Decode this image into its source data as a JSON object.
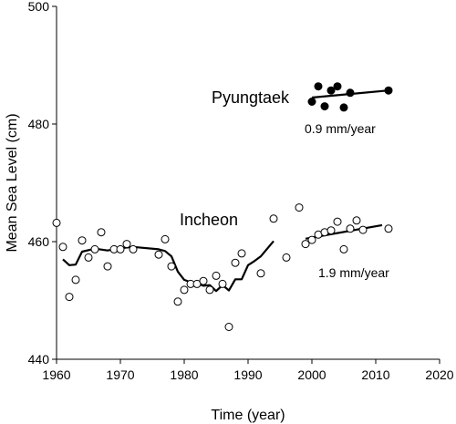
{
  "chart_data": {
    "type": "scatter",
    "xlabel": "Time (year)",
    "ylabel": "Mean Sea Level (cm)",
    "xlim": [
      1960,
      2020
    ],
    "ylim": [
      440,
      500
    ],
    "xticks": [
      1960,
      1970,
      1980,
      1990,
      2000,
      2010,
      2020
    ],
    "yticks": [
      440,
      460,
      480,
      500
    ],
    "grid": false,
    "series": [
      {
        "name": "Incheon",
        "marker": "open-circle",
        "points": [
          [
            1960,
            463.2
          ],
          [
            1961,
            459.1
          ],
          [
            1962,
            450.6
          ],
          [
            1963,
            453.5
          ],
          [
            1964,
            460.2
          ],
          [
            1965,
            457.3
          ],
          [
            1966,
            458.7
          ],
          [
            1967,
            461.6
          ],
          [
            1968,
            455.8
          ],
          [
            1969,
            458.7
          ],
          [
            1970,
            458.7
          ],
          [
            1971,
            459.6
          ],
          [
            1972,
            458.7
          ],
          [
            1976,
            457.8
          ],
          [
            1977,
            460.4
          ],
          [
            1978,
            455.8
          ],
          [
            1979,
            449.8
          ],
          [
            1980,
            451.8
          ],
          [
            1981,
            452.8
          ],
          [
            1982,
            452.8
          ],
          [
            1983,
            453.3
          ],
          [
            1984,
            451.8
          ],
          [
            1985,
            454.2
          ],
          [
            1986,
            452.8
          ],
          [
            1987,
            445.5
          ],
          [
            1988,
            456.4
          ],
          [
            1989,
            458.0
          ],
          [
            1992,
            454.6
          ],
          [
            1994,
            463.9
          ],
          [
            1996,
            457.3
          ],
          [
            1998,
            465.8
          ],
          [
            1999,
            459.6
          ],
          [
            2000,
            460.3
          ],
          [
            2001,
            461.2
          ],
          [
            2002,
            461.6
          ],
          [
            2003,
            461.9
          ],
          [
            2004,
            463.4
          ],
          [
            2005,
            458.7
          ],
          [
            2006,
            462.2
          ],
          [
            2007,
            463.6
          ],
          [
            2008,
            462.0
          ],
          [
            2012,
            462.2
          ]
        ],
        "trend_line": [
          [
            1961,
            457.0
          ],
          [
            1962,
            456.0
          ],
          [
            1963,
            456.1
          ],
          [
            1964,
            458.3
          ],
          [
            1966,
            458.8
          ],
          [
            1968,
            458.5
          ],
          [
            1970,
            458.9
          ],
          [
            1972,
            459.1
          ],
          [
            1976,
            458.7
          ],
          [
            1977,
            458.4
          ],
          [
            1978,
            457.5
          ],
          [
            1979,
            454.9
          ],
          [
            1980,
            453.5
          ],
          [
            1981,
            453.1
          ],
          [
            1982,
            452.9
          ],
          [
            1983,
            452.5
          ],
          [
            1984,
            452.6
          ],
          [
            1985,
            451.6
          ],
          [
            1986,
            452.6
          ],
          [
            1987,
            451.7
          ],
          [
            1988,
            453.6
          ],
          [
            1989,
            453.6
          ],
          [
            1990,
            456.0
          ],
          [
            1991,
            456.7
          ],
          [
            1992,
            457.5
          ],
          [
            1994,
            460.1
          ]
        ],
        "fit_line": [
          [
            1999,
            460.5
          ],
          [
            2011,
            462.8
          ]
        ],
        "fit_label": "1.9 mm/year"
      },
      {
        "name": "Pyungtaek",
        "marker": "filled-circle",
        "points": [
          [
            2000,
            483.8
          ],
          [
            2001,
            486.4
          ],
          [
            2002,
            483.0
          ],
          [
            2003,
            485.7
          ],
          [
            2004,
            486.4
          ],
          [
            2005,
            482.8
          ],
          [
            2006,
            485.3
          ],
          [
            2012,
            485.7
          ]
        ],
        "fit_line": [
          [
            2000,
            484.5
          ],
          [
            2012,
            485.7
          ]
        ],
        "fit_label": "0.9 mm/year"
      }
    ]
  }
}
